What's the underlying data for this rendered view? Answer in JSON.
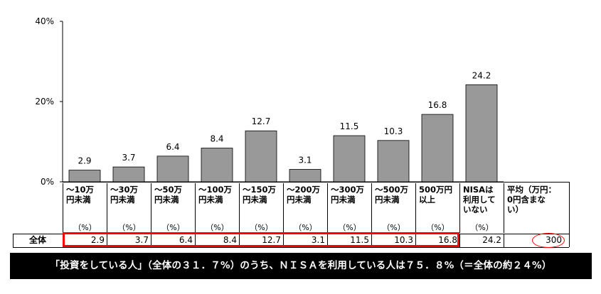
{
  "chart_data": {
    "type": "bar",
    "categories": [
      "～10万円未満",
      "～30万円未満",
      "～50万円未満",
      "～100万円未満",
      "～150万円未満",
      "～200万円未満",
      "～300万円未満",
      "～500万円未満",
      "500万円以上",
      "NISAは利用していない"
    ],
    "category_lines": [
      [
        "～10万",
        "円未満"
      ],
      [
        "～30万",
        "円未満"
      ],
      [
        "～50万",
        "円未満"
      ],
      [
        "～100万",
        "円未満"
      ],
      [
        "～150万",
        "円未満"
      ],
      [
        "～200万",
        "円未満"
      ],
      [
        "～300万",
        "円未満"
      ],
      [
        "～500万",
        "円未満"
      ],
      [
        "500万円",
        "以上"
      ],
      [
        "NISAは",
        "利用して",
        "いない"
      ]
    ],
    "values": [
      2.9,
      3.7,
      6.4,
      8.4,
      12.7,
      3.1,
      11.5,
      10.3,
      16.8,
      24.2
    ],
    "value_labels": [
      "2.9",
      "3.7",
      "6.4",
      "8.4",
      "12.7",
      "3.1",
      "11.5",
      "10.3",
      "16.8",
      "24.2"
    ],
    "unit_label": "（%）",
    "yticks": [
      "0%",
      "20%",
      "40%"
    ],
    "ytick_values": [
      0,
      20,
      40
    ],
    "ylim": [
      0,
      40
    ],
    "bar_color": "#999999",
    "extra_column": {
      "header_lines": [
        "平均（万円：",
        "0円含まな",
        "い）"
      ],
      "value": "300"
    },
    "row_label": "全体",
    "highlight_color": "#ff0000"
  },
  "banner": "「投資をしている人」（全体の３１．７%）のうち、ＮＩＳＡを利用している人は７５．８%（＝全体の約２４%）"
}
